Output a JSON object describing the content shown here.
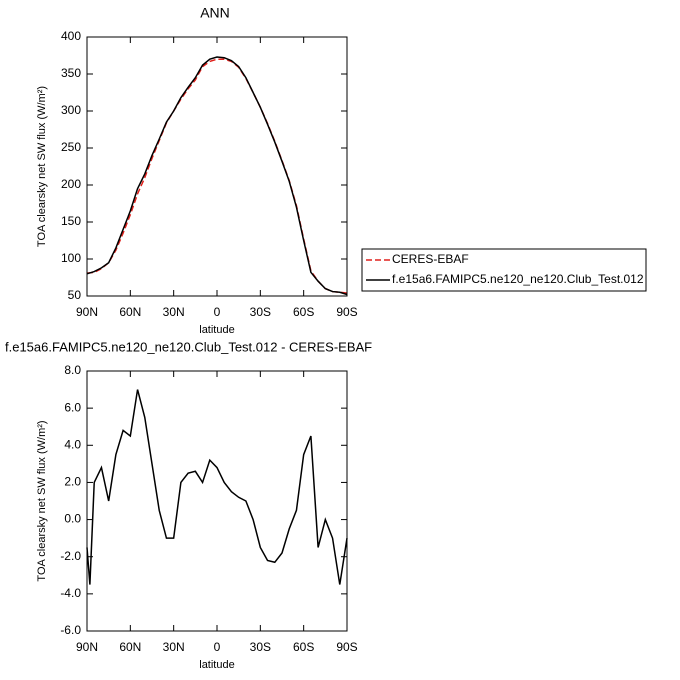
{
  "chart_data": [
    {
      "type": "line",
      "title": "ANN",
      "xlabel": "latitude",
      "ylabel": "TOA clearsky net SW flux (W/m²)",
      "x": [
        90,
        85,
        80,
        75,
        70,
        65,
        60,
        55,
        50,
        45,
        40,
        35,
        30,
        25,
        20,
        15,
        10,
        5,
        0,
        -5,
        -10,
        -15,
        -20,
        -25,
        -30,
        -35,
        -40,
        -45,
        -50,
        -55,
        -60,
        -65,
        -70,
        -75,
        -80,
        -85,
        -90
      ],
      "series": [
        {
          "name": "CERES-EBAF",
          "color": "#e0201b",
          "dash": true,
          "values": [
            81,
            82,
            87,
            95,
            112,
            135,
            160,
            188,
            210,
            236,
            260,
            284,
            300,
            316,
            330,
            342,
            360,
            367,
            370,
            370,
            367,
            359,
            344,
            325,
            305,
            283,
            259,
            233,
            206,
            172,
            127,
            84,
            70,
            60,
            56,
            55,
            54
          ]
        },
        {
          "name": "f.e15a6.FAMIPC5.ne120_ne120.Club_Test.012",
          "color": "#000000",
          "dash": false,
          "values": [
            80,
            83,
            88,
            95,
            115,
            140,
            165,
            195,
            215,
            240,
            262,
            285,
            300,
            318,
            332,
            345,
            362,
            370,
            373,
            372,
            368,
            360,
            345,
            325,
            305,
            282,
            258,
            232,
            205,
            170,
            125,
            82,
            70,
            60,
            56,
            55,
            52
          ]
        }
      ],
      "xlim": [
        90,
        -90
      ],
      "xticks": [
        {
          "value": 90,
          "label": "90N"
        },
        {
          "value": 60,
          "label": "60N"
        },
        {
          "value": 30,
          "label": "30N"
        },
        0,
        {
          "value": -30,
          "label": "30S"
        },
        {
          "value": -60,
          "label": "60S"
        },
        {
          "value": -90,
          "label": "90S"
        }
      ],
      "ylim": [
        50,
        400
      ],
      "yticks": [
        50,
        100,
        150,
        200,
        250,
        300,
        350,
        400
      ],
      "legend": "right"
    },
    {
      "type": "line",
      "title": "f.e15a6.FAMIPC5.ne120_ne120.Club_Test.012 - CERES-EBAF",
      "xlabel": "latitude",
      "ylabel": "TOA clearsky net SW flux (W/m²)",
      "x": [
        90,
        88,
        85,
        80,
        75,
        70,
        65,
        60,
        55,
        50,
        45,
        40,
        35,
        30,
        25,
        20,
        15,
        10,
        5,
        0,
        -5,
        -10,
        -15,
        -20,
        -25,
        -30,
        -35,
        -40,
        -45,
        -50,
        -55,
        -60,
        -65,
        -70,
        -75,
        -80,
        -85,
        -90
      ],
      "color": "#000000",
      "values": [
        -1.5,
        -3.5,
        2.0,
        2.8,
        1.0,
        3.5,
        4.8,
        4.5,
        7.0,
        5.5,
        3.0,
        0.5,
        -1.0,
        -1.0,
        2.0,
        2.5,
        2.6,
        2.0,
        3.2,
        2.8,
        2.0,
        1.5,
        1.2,
        1.0,
        0.0,
        -1.5,
        -2.2,
        -2.3,
        -1.8,
        -0.5,
        0.5,
        3.5,
        4.5,
        -1.5,
        0.0,
        -1.0,
        -3.5,
        -1.0
      ],
      "xlim": [
        90,
        -90
      ],
      "xticks": [
        {
          "value": 90,
          "label": "90N"
        },
        {
          "value": 60,
          "label": "60N"
        },
        {
          "value": 30,
          "label": "30N"
        },
        0,
        {
          "value": -30,
          "label": "30S"
        },
        {
          "value": -60,
          "label": "60S"
        },
        {
          "value": -90,
          "label": "90S"
        }
      ],
      "ylim": [
        -6,
        8
      ],
      "yticks": [
        {
          "value": -6,
          "label": "-6.0"
        },
        {
          "value": -4,
          "label": "-4.0"
        },
        {
          "value": -2,
          "label": "-2.0"
        },
        {
          "value": 0,
          "label": "0.0"
        },
        {
          "value": 2,
          "label": "2.0"
        },
        {
          "value": 4,
          "label": "4.0"
        },
        {
          "value": 6,
          "label": "6.0"
        },
        {
          "value": 8,
          "label": "8.0"
        }
      ]
    }
  ]
}
